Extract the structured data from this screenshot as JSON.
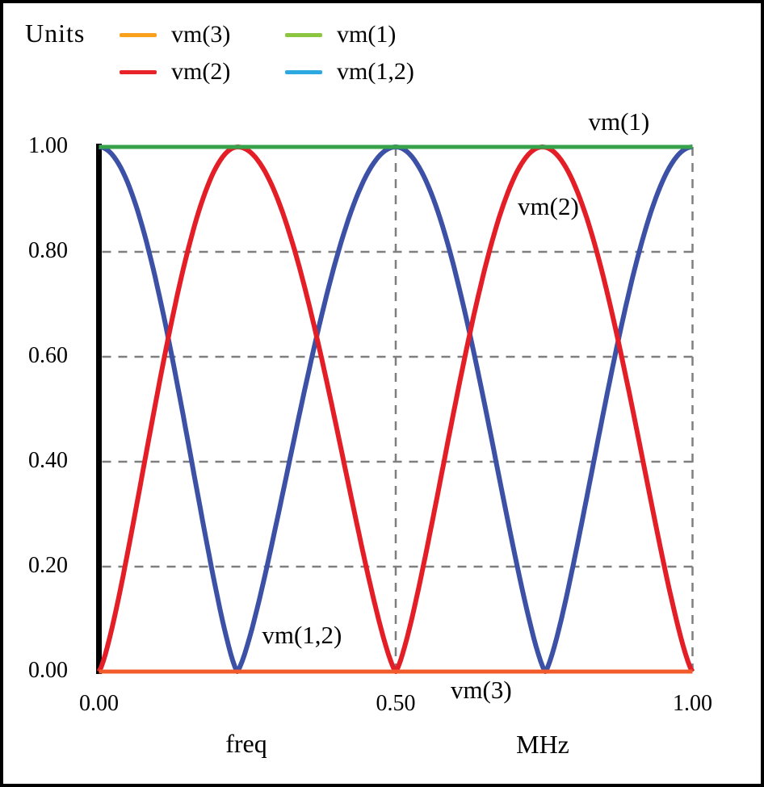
{
  "legend": {
    "title": "Units",
    "items": [
      {
        "label": "vm(3)",
        "color": "#F9A11B"
      },
      {
        "label": "vm(1)",
        "color": "#8CC540"
      },
      {
        "label": "vm(2)",
        "color": "#E8242A"
      },
      {
        "label": "vm(1,2)",
        "color": "#2BA9E0"
      }
    ]
  },
  "chart_data": {
    "type": "line",
    "title": "",
    "xlabel": "freq",
    "x_unit": "MHz",
    "ylabel": "Units",
    "xlim": [
      0,
      1
    ],
    "ylim": [
      0,
      1
    ],
    "x_ticks": [
      {
        "v": 0,
        "label": "0.00"
      },
      {
        "v": 0.5,
        "label": "0.50"
      },
      {
        "v": 1,
        "label": "1.00"
      }
    ],
    "y_ticks": [
      {
        "v": 0,
        "label": "0.00"
      },
      {
        "v": 0.2,
        "label": "0.20"
      },
      {
        "v": 0.4,
        "label": "0.40"
      },
      {
        "v": 0.6,
        "label": "0.60"
      },
      {
        "v": 0.8,
        "label": "0.80"
      },
      {
        "v": 1,
        "label": "1.00"
      }
    ],
    "grid": {
      "style": "dashed",
      "color": "#7F7F7F",
      "h_lines": [
        0.2,
        0.4,
        0.6,
        0.8
      ],
      "v_lines": [
        0.5,
        1.0
      ]
    },
    "arch_shape": {
      "family": "abs-sine",
      "exponent": 1.3
    },
    "series": [
      {
        "name": "vm(1,2)",
        "color": "#3C51A5",
        "stroke_width": 6,
        "key_points": [
          [
            0,
            1
          ],
          [
            0.233,
            0
          ],
          [
            0.5,
            1
          ],
          [
            0.752,
            0
          ],
          [
            1,
            1
          ]
        ],
        "arches": [
          {
            "x0": 0,
            "x1": 0.233,
            "y0": 1,
            "y1": 0
          },
          {
            "x0": 0.233,
            "x1": 0.5,
            "y0": 0,
            "y1": 1
          },
          {
            "x0": 0.5,
            "x1": 0.752,
            "y0": 1,
            "y1": 0
          },
          {
            "x0": 0.752,
            "x1": 1,
            "y0": 0,
            "y1": 1
          }
        ]
      },
      {
        "name": "vm(2)",
        "color": "#E31E26",
        "stroke_width": 6,
        "key_points": [
          [
            0,
            0
          ],
          [
            0.234,
            1
          ],
          [
            0.5,
            0
          ],
          [
            0.747,
            1
          ],
          [
            1,
            0
          ]
        ],
        "arches": [
          {
            "x0": 0,
            "x1": 0.234,
            "y0": 0,
            "y1": 1
          },
          {
            "x0": 0.234,
            "x1": 0.5,
            "y0": 1,
            "y1": 0
          },
          {
            "x0": 0.5,
            "x1": 0.747,
            "y0": 0,
            "y1": 1
          },
          {
            "x0": 0.747,
            "x1": 1,
            "y0": 1,
            "y1": 0
          }
        ]
      },
      {
        "name": "vm(1)",
        "color": "#36A34C",
        "stroke_width": 5,
        "key_points": [
          [
            0,
            1
          ],
          [
            1,
            1
          ]
        ],
        "arches": [
          {
            "x0": 0,
            "x1": 1,
            "y0": 1,
            "y1": 1
          }
        ]
      },
      {
        "name": "vm(3)",
        "color": "#F15B2B",
        "stroke_width": 5,
        "key_points": [
          [
            0,
            0
          ],
          [
            1,
            0
          ]
        ],
        "arches": [
          {
            "x0": 0,
            "x1": 1,
            "y0": 0,
            "y1": 0
          }
        ]
      }
    ],
    "annotations": [
      {
        "text": "vm(1)",
        "x": 0.876,
        "y": 1.048
      },
      {
        "text": "vm(2)",
        "x": 0.757,
        "y": 0.886
      },
      {
        "text": "vm(1,2)",
        "x": 0.342,
        "y": 0.069
      },
      {
        "text": "vm(3)",
        "x": 0.644,
        "y": -0.035
      }
    ]
  }
}
